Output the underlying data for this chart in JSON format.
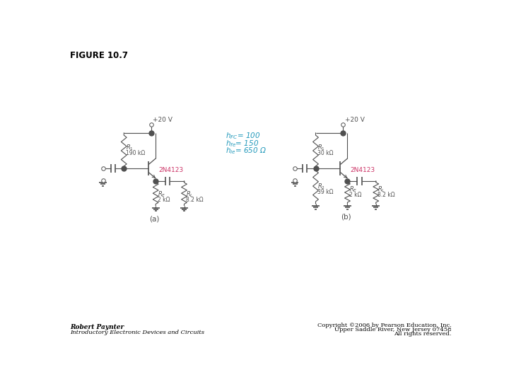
{
  "title": "FIGURE 10.7",
  "background": "#ffffff",
  "line_color": "#505050",
  "transistor_color": "#cc3366",
  "param_color": "#2299bb",
  "label_a": "(a)",
  "label_b": "(b)",
  "circuit_a": {
    "vcc": "+20 V",
    "R1_label": "R",
    "R1_sub": "1",
    "R1_val": "190 kΩ",
    "RE_label": "R",
    "RE_sub": "E",
    "RE_val": "2 kΩ",
    "RL_label": "R",
    "RL_sub": "L",
    "RL_val": "8.2 kΩ",
    "transistor": "2N4123"
  },
  "circuit_b": {
    "vcc": "+20 V",
    "R1_label": "R",
    "R1_sub": "1",
    "R1_val": "30 kΩ",
    "R2_label": "R",
    "R2_sub": "2",
    "R2_val": "39 kΩ",
    "RE_label": "R",
    "RE_sub": "E",
    "RE_val": "2 kΩ",
    "RL_label": "R",
    "RL_sub": "L",
    "RL_val": "8.2 kΩ",
    "transistor": "2N4123"
  },
  "params": {
    "line1": "h",
    "line1_sub": "FC",
    "line1_val": " = 100",
    "line2": "h",
    "line2_sub": "fe",
    "line2_val": " = 150",
    "line3": "h",
    "line3_sub": "ie",
    "line3_val": " = 650 Ω"
  },
  "footer_left_line1": "Robert Paynter",
  "footer_left_line2": "Introductory Electronic Devices and Circuits",
  "footer_right_line1": "Copyright ©2006 by Pearson Education, Inc.",
  "footer_right_line2": "Upper Saddle River, New Jersey 07458",
  "footer_right_line3": "All rights reserved."
}
